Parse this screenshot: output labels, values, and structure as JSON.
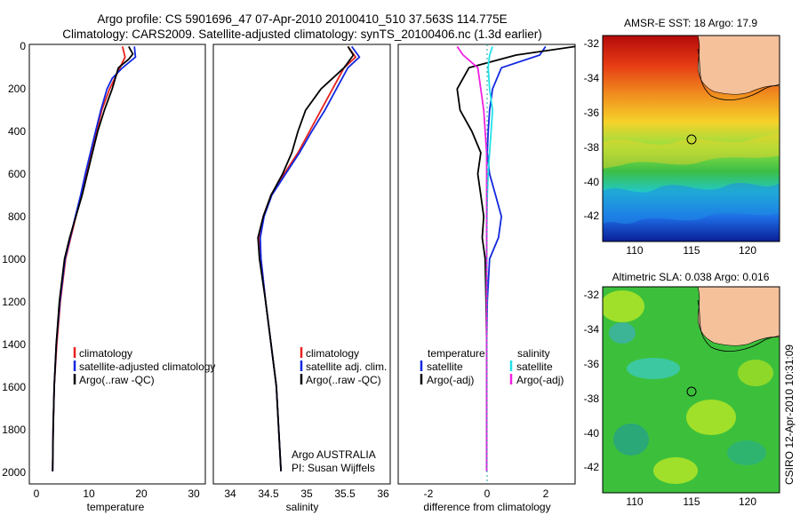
{
  "header": {
    "title_line1": "Argo profile: CS 5901696_47 07-Apr-2010 20100410_510 37.563S 114.775E",
    "title_line2": "Climatology: CARS2009. Satellite-adjusted climatology: synTS_20100406.nc (1.3d earlier)"
  },
  "colors": {
    "climatology": "#e8211d",
    "satellite": "#1228e0",
    "argo": "#000000",
    "sat_salinity": "#22e0e8",
    "argo_salinity": "#f020e0",
    "land": "#f5c19b"
  },
  "depth_axis": {
    "ticks": [
      "0",
      "200",
      "400",
      "600",
      "800",
      "1000",
      "1200",
      "1400",
      "1600",
      "1800",
      "2000"
    ]
  },
  "temperature_panel": {
    "xlabel": "temperature",
    "xticks": [
      "0",
      "10",
      "20",
      "30"
    ],
    "legend": [
      "climatology",
      "satellite-adjusted climatology",
      "Argo(..raw -QC)"
    ]
  },
  "salinity_panel": {
    "xlabel": "salinity",
    "xticks": [
      "34",
      "34.5",
      "35",
      "35.5",
      "36"
    ],
    "legend": [
      "climatology",
      "satellite adj. clim.",
      "Argo(..raw -QC)"
    ],
    "note_line1": "Argo AUSTRALIA",
    "note_line2": "PI: Susan Wijffels"
  },
  "difference_panel": {
    "xlabel": "difference from climatology",
    "xticks": [
      "-2",
      "0",
      "2"
    ],
    "legend_temp_title": "temperature",
    "legend_sal_title": "salinity",
    "legend_temp": [
      "satellite",
      "Argo(-adj)"
    ],
    "legend_sal": [
      "satellite",
      "Argo(-adj)"
    ]
  },
  "sst_map": {
    "title": "AMSR-E SST: 18 Argo: 17.9",
    "yticks": [
      "-32",
      "-34",
      "-36",
      "-38",
      "-40",
      "-42"
    ],
    "xticks": [
      "110",
      "115",
      "120"
    ]
  },
  "sla_map": {
    "title": "Altimetric SLA: 0.038 Argo: 0.016",
    "yticks": [
      "-32",
      "-34",
      "-36",
      "-38",
      "-40",
      "-42"
    ],
    "xticks": [
      "110",
      "115",
      "120"
    ]
  },
  "credit": "CSIRO 12-Apr-2010 10:31:09",
  "chart_data": [
    {
      "type": "line",
      "title": "temperature",
      "xlabel": "temperature",
      "ylabel": "depth",
      "xlim": [
        -2,
        32
      ],
      "ylim": [
        2060,
        -10
      ],
      "series": [
        {
          "name": "climatology",
          "x": [
            16,
            16.5,
            15.5,
            14.5,
            13.5,
            12,
            11,
            10,
            9,
            8,
            7,
            6,
            5,
            4,
            3.3,
            2.8,
            2.6,
            2.5
          ],
          "y": [
            0,
            50,
            100,
            150,
            200,
            300,
            400,
            500,
            600,
            700,
            800,
            900,
            1000,
            1200,
            1400,
            1600,
            1800,
            2000
          ]
        },
        {
          "name": "satellite-adjusted climatology",
          "x": [
            18.3,
            18.5,
            16,
            14,
            13,
            11.8,
            10.8,
            9.8,
            8.8,
            7.9,
            6.9,
            5.9,
            4.9,
            3.9,
            3.2,
            2.8,
            2.6,
            2.5
          ],
          "y": [
            0,
            50,
            100,
            150,
            200,
            300,
            400,
            500,
            600,
            700,
            800,
            900,
            1000,
            1200,
            1400,
            1600,
            1800,
            2000
          ]
        },
        {
          "name": "Argo(..raw -QC)",
          "x": [
            17.2,
            18,
            17.2,
            15.2,
            14,
            12.5,
            11.2,
            10.2,
            9.2,
            8.2,
            7,
            5.8,
            4.8,
            3.8,
            3.2,
            2.8,
            2.6,
            2.5
          ],
          "y": [
            0,
            35,
            60,
            100,
            200,
            300,
            400,
            500,
            600,
            700,
            800,
            900,
            1000,
            1200,
            1400,
            1600,
            1800,
            2000
          ]
        }
      ]
    },
    {
      "type": "line",
      "title": "salinity",
      "xlabel": "salinity",
      "ylabel": "depth",
      "xlim": [
        33.8,
        36.1
      ],
      "ylim": [
        2060,
        -10
      ],
      "series": [
        {
          "name": "climatology",
          "x": [
            35.55,
            35.65,
            35.5,
            35.35,
            35.2,
            35.05,
            34.9,
            34.72,
            34.55,
            34.45,
            34.4,
            34.42,
            34.48,
            34.55,
            34.62,
            34.68
          ],
          "y": [
            0,
            50,
            100,
            200,
            300,
            400,
            500,
            600,
            700,
            800,
            900,
            1000,
            1200,
            1400,
            1600,
            2000
          ]
        },
        {
          "name": "satellite adj. clim.",
          "x": [
            35.6,
            35.7,
            35.55,
            35.4,
            35.25,
            35.08,
            34.92,
            34.74,
            34.56,
            34.46,
            34.41,
            34.42,
            34.48,
            34.55,
            34.62,
            34.68
          ],
          "y": [
            0,
            50,
            100,
            200,
            300,
            400,
            500,
            600,
            700,
            800,
            900,
            1000,
            1200,
            1400,
            1600,
            2000
          ]
        },
        {
          "name": "Argo(..raw -QC)",
          "x": [
            35.55,
            35.62,
            35.5,
            35.2,
            35,
            34.9,
            34.82,
            34.7,
            34.55,
            34.45,
            34.38,
            34.4,
            34.48,
            34.55,
            34.62,
            34.68
          ],
          "y": [
            0,
            40,
            100,
            200,
            300,
            400,
            500,
            600,
            700,
            800,
            900,
            1000,
            1200,
            1400,
            1600,
            2000
          ]
        }
      ]
    },
    {
      "type": "line",
      "title": "difference from climatology",
      "xlabel": "difference from climatology",
      "ylabel": "depth",
      "xlim": [
        -3,
        3
      ],
      "ylim": [
        2060,
        -10
      ],
      "series": [
        {
          "name": "temperature satellite",
          "x": [
            2,
            1.8,
            0.5,
            0.2,
            0.1,
            0.05,
            0.02,
            0.1,
            0.3,
            0.5,
            0.4,
            0.1,
            0.02,
            0,
            0,
            0
          ],
          "y": [
            0,
            40,
            100,
            200,
            300,
            400,
            500,
            600,
            700,
            800,
            900,
            1000,
            1200,
            1400,
            1600,
            2000
          ]
        },
        {
          "name": "temperature Argo(-adj)",
          "x": [
            3,
            1,
            -0.6,
            -1,
            -0.9,
            -0.5,
            -0.2,
            -0.3,
            -0.2,
            -0.1,
            -0.15,
            -0.05,
            -0.02,
            0,
            0,
            0
          ],
          "y": [
            0,
            40,
            100,
            200,
            300,
            400,
            500,
            600,
            700,
            800,
            900,
            1000,
            1200,
            1400,
            1600,
            2000
          ]
        },
        {
          "name": "salinity satellite",
          "x": [
            0.2,
            0.1,
            0.05,
            0.1,
            0.2,
            0.15,
            0.1,
            0.05,
            0.02,
            0.01,
            0,
            0,
            0,
            0,
            0,
            0
          ],
          "y": [
            0,
            40,
            100,
            200,
            300,
            400,
            500,
            600,
            700,
            800,
            900,
            1000,
            1200,
            1400,
            1600,
            2000
          ]
        },
        {
          "name": "salinity Argo(-adj)",
          "x": [
            -1,
            -0.8,
            -0.3,
            -0.2,
            -0.1,
            -0.05,
            0,
            0,
            0,
            0,
            0,
            0,
            0,
            0,
            0,
            0
          ],
          "y": [
            0,
            40,
            100,
            200,
            300,
            400,
            500,
            600,
            700,
            800,
            900,
            1000,
            1200,
            1400,
            1600,
            2000
          ]
        }
      ]
    }
  ]
}
